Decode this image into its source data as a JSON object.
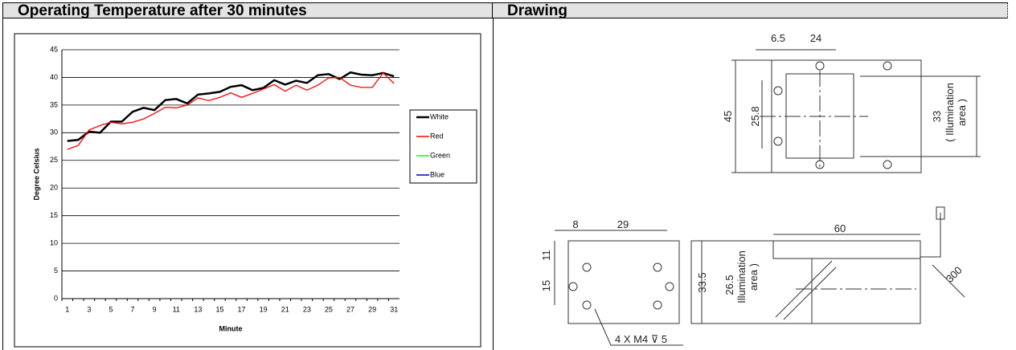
{
  "table": {
    "headers": [
      "Operating Temperature after 30 minutes",
      "Drawing"
    ]
  },
  "chart_data": {
    "type": "line",
    "x_label": "Minute",
    "y_label": "Degree Celsius",
    "categories": [
      1,
      null,
      3,
      null,
      5,
      null,
      7,
      null,
      9,
      null,
      11,
      null,
      13,
      null,
      15,
      null,
      17,
      null,
      19,
      null,
      21,
      null,
      23,
      null,
      25,
      null,
      27,
      null,
      29,
      null,
      31
    ],
    "ylim": [
      0,
      45
    ],
    "yticks": [
      0,
      5,
      10,
      15,
      20,
      25,
      30,
      35,
      40,
      45
    ],
    "grid": true,
    "legend": "right",
    "series": [
      {
        "name": "White",
        "color": "#000000",
        "values": [
          28.5,
          28.7,
          30.2,
          30.0,
          32.0,
          32.0,
          33.8,
          34.5,
          34.1,
          35.9,
          36.1,
          35.3,
          36.9,
          37.1,
          37.4,
          38.3,
          38.6,
          37.7,
          38.1,
          39.5,
          38.7,
          39.4,
          39.0,
          40.4,
          40.6,
          39.7,
          40.9,
          40.5,
          40.4,
          40.8,
          40.2
        ]
      },
      {
        "name": "Red",
        "color": "#ff0000",
        "values": [
          27.0,
          27.7,
          30.5,
          31.3,
          31.9,
          31.6,
          31.9,
          32.5,
          33.5,
          34.6,
          34.5,
          35.0,
          36.3,
          35.8,
          36.4,
          37.2,
          36.4,
          37.1,
          37.9,
          38.7,
          37.5,
          38.6,
          37.7,
          38.6,
          39.9,
          40.0,
          38.6,
          38.2,
          38.2,
          40.8,
          38.9
        ]
      },
      {
        "name": "Green",
        "color": "#00ff00",
        "values": [
          null,
          null,
          null,
          null,
          null,
          null,
          null,
          null,
          null,
          null,
          null,
          null,
          null,
          null,
          null,
          null,
          null,
          null,
          null,
          null,
          null,
          null,
          null,
          null,
          null,
          null,
          null,
          null,
          null,
          null,
          null
        ]
      },
      {
        "name": "Blue",
        "color": "#0000cc",
        "values": [
          null,
          null,
          null,
          null,
          null,
          null,
          null,
          null,
          null,
          null,
          null,
          null,
          null,
          null,
          null,
          null,
          null,
          null,
          null,
          null,
          null,
          null,
          null,
          null,
          null,
          null,
          null,
          null,
          null,
          null,
          null
        ]
      }
    ]
  },
  "drawing": {
    "labels": [
      "6.5",
      "24",
      "45",
      "25.8",
      "33",
      "( Illumination",
      "area )",
      "8",
      "29",
      "11",
      "15",
      "4 X M4 ⊽ 5",
      "33.5",
      "26.5",
      "Illumination",
      "area )",
      "60",
      "300"
    ]
  }
}
